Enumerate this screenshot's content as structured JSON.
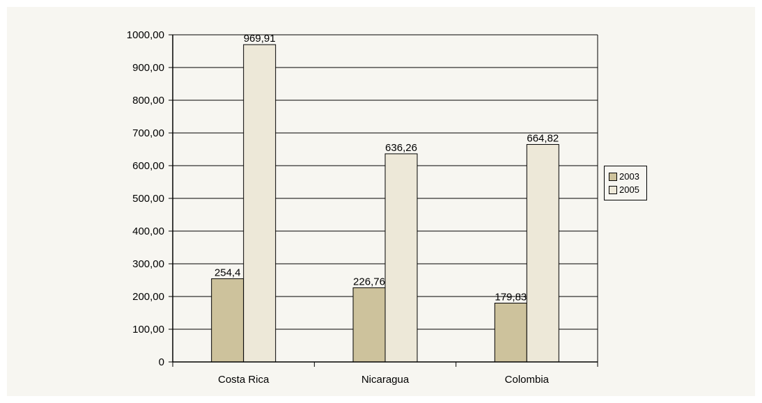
{
  "chart_data": {
    "type": "bar",
    "categories": [
      "Costa Rica",
      "Nicaragua",
      "Colombia"
    ],
    "series": [
      {
        "name": "2003",
        "values": [
          254.4,
          226.76,
          179.83
        ],
        "value_labels": [
          "254,4",
          "226,76",
          "179,83"
        ],
        "color": "#cdc29c"
      },
      {
        "name": "2005",
        "values": [
          969.91,
          636.26,
          664.82
        ],
        "value_labels": [
          "969,91",
          "636,26",
          "664,82"
        ],
        "color": "#ede8d8"
      }
    ],
    "y_ticks": [
      {
        "value": 0,
        "label": "0"
      },
      {
        "value": 100,
        "label": "100,00"
      },
      {
        "value": 200,
        "label": "200,00"
      },
      {
        "value": 300,
        "label": "300,00"
      },
      {
        "value": 400,
        "label": "400,00"
      },
      {
        "value": 500,
        "label": "500,00"
      },
      {
        "value": 600,
        "label": "600,00"
      },
      {
        "value": 700,
        "label": "700,00"
      },
      {
        "value": 800,
        "label": "800,00"
      },
      {
        "value": 900,
        "label": "900,00"
      },
      {
        "value": 1000,
        "label": "1000,00"
      }
    ],
    "ylim": [
      0,
      1000
    ],
    "title": "",
    "xlabel": "",
    "ylabel": "",
    "grid": true,
    "legend_position": "right"
  }
}
